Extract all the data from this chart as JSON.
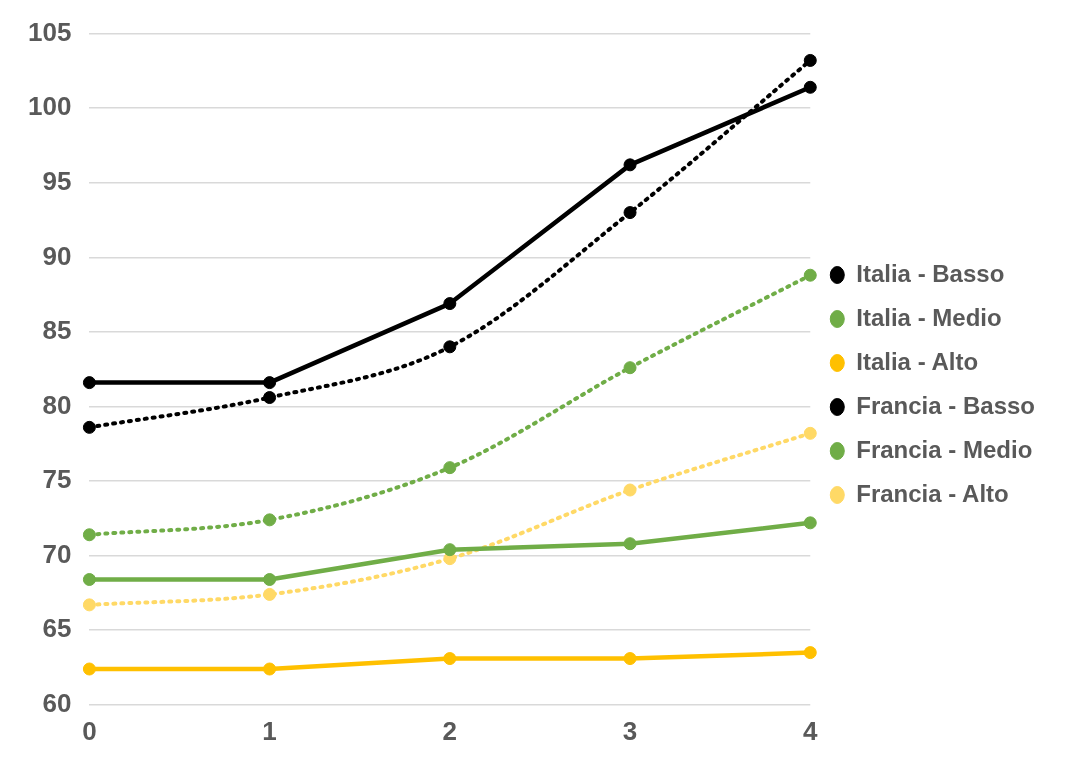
{
  "chart_data": {
    "type": "line",
    "categories": [
      "0",
      "1",
      "2",
      "3",
      "4"
    ],
    "ylim": [
      60,
      105
    ],
    "yticks": [
      60,
      65,
      70,
      75,
      80,
      85,
      90,
      95,
      100,
      105
    ],
    "grid": "y",
    "legend": "right",
    "marker": "circle",
    "series": [
      {
        "name": "Italia - Basso",
        "color": "#000000",
        "line_style": "solid",
        "values": [
          81.6,
          81.6,
          86.9,
          96.2,
          101.4
        ]
      },
      {
        "name": "Italia - Medio",
        "color": "#70ad47",
        "line_style": "solid",
        "values": [
          68.4,
          68.4,
          70.4,
          70.8,
          72.2
        ]
      },
      {
        "name": "Italia - Alto",
        "color": "#ffc000",
        "line_style": "solid",
        "values": [
          62.4,
          62.4,
          63.1,
          63.1,
          63.5
        ]
      },
      {
        "name": "Francia - Basso",
        "color": "#000000",
        "line_style": "dotted",
        "values": [
          78.6,
          80.6,
          84.0,
          93.0,
          103.2
        ]
      },
      {
        "name": "Francia - Medio",
        "color": "#70ad47",
        "line_style": "dotted",
        "values": [
          71.4,
          72.4,
          75.9,
          82.6,
          88.8
        ]
      },
      {
        "name": "Francia - Alto",
        "color": "#ffd966",
        "line_style": "dotted",
        "values": [
          66.7,
          67.4,
          69.8,
          74.4,
          78.2
        ]
      }
    ]
  }
}
